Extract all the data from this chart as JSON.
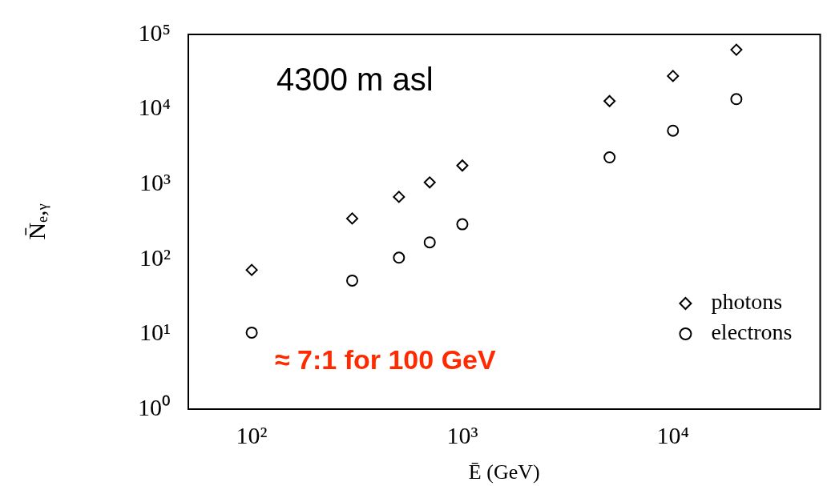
{
  "chart_data": {
    "type": "scatter",
    "xlabel": "Ē (GeV)",
    "ylabel": "N̄ₑ,ᵧ",
    "x": [
      100,
      300,
      500,
      700,
      1000,
      5000,
      10000,
      20000
    ],
    "series": [
      {
        "name": "photons",
        "color": "#000000",
        "marker": "diamond",
        "values": [
          72,
          350,
          680,
          1060,
          1780,
          12900,
          27900,
          62500
        ]
      },
      {
        "name": "electrons",
        "color": "#000000",
        "marker": "circle",
        "values": [
          10.5,
          52,
          105,
          168,
          293,
          2290,
          5200,
          13700
        ]
      }
    ],
    "log": "xy",
    "xlim": [
      50,
      50000
    ],
    "ylim": [
      1,
      100000
    ],
    "xticks": [
      {
        "value": 100,
        "label": "10²"
      },
      {
        "value": 1000,
        "label": "10³"
      },
      {
        "value": 10000,
        "label": "10⁴"
      }
    ],
    "yticks": [
      {
        "value": 1,
        "label": "10⁰"
      },
      {
        "value": 10,
        "label": "10¹"
      },
      {
        "value": 100,
        "label": "10²"
      },
      {
        "value": 1000,
        "label": "10³"
      },
      {
        "value": 10000,
        "label": "10⁴"
      },
      {
        "value": 100000,
        "label": "10⁵"
      }
    ],
    "legend": "bottom right",
    "grid": false,
    "annotations": [
      "4300 m asl",
      "≈ 7:1 for 100 GeV"
    ]
  }
}
